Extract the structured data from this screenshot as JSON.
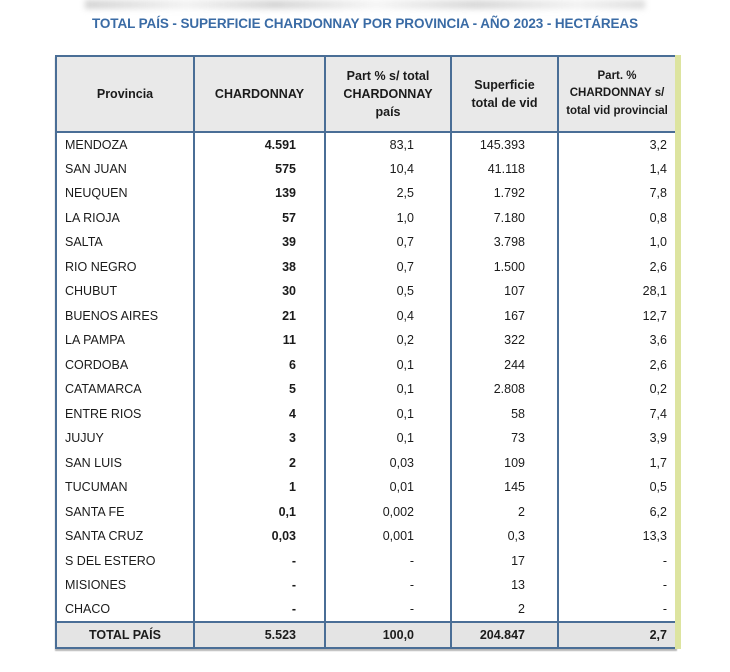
{
  "page": {
    "title": "TOTAL PAÍS - SUPERFICIE CHARDONNAY POR PROVINCIA - AÑO 2023 - HECTÁREAS"
  },
  "chart_data": {
    "type": "table",
    "title": "TOTAL PAÍS - SUPERFICIE CHARDONNAY POR PROVINCIA - AÑO 2023 - HECTÁREAS",
    "columns": [
      "Provincia",
      "CHARDONNAY",
      "Part % s/ total CHARDONNAY país",
      "Superficie total de vid",
      "Part. % CHARDONNAY s/ total vid provincial"
    ],
    "column_headers_display": [
      "Provincia",
      "CHARDONNAY",
      "Part % s/ total\nCHARDONNAY\npaís",
      "Superficie\ntotal de vid",
      "Part. %\nCHARDONNAY s/\ntotal vid provincial"
    ],
    "rows": [
      [
        "MENDOZA",
        "4.591",
        "83,1",
        "145.393",
        "3,2"
      ],
      [
        "SAN JUAN",
        "575",
        "10,4",
        "41.118",
        "1,4"
      ],
      [
        "NEUQUEN",
        "139",
        "2,5",
        "1.792",
        "7,8"
      ],
      [
        "LA RIOJA",
        "57",
        "1,0",
        "7.180",
        "0,8"
      ],
      [
        "SALTA",
        "39",
        "0,7",
        "3.798",
        "1,0"
      ],
      [
        "RIO NEGRO",
        "38",
        "0,7",
        "1.500",
        "2,6"
      ],
      [
        "CHUBUT",
        "30",
        "0,5",
        "107",
        "28,1"
      ],
      [
        "BUENOS AIRES",
        "21",
        "0,4",
        "167",
        "12,7"
      ],
      [
        "LA PAMPA",
        "11",
        "0,2",
        "322",
        "3,6"
      ],
      [
        "CORDOBA",
        "6",
        "0,1",
        "244",
        "2,6"
      ],
      [
        "CATAMARCA",
        "5",
        "0,1",
        "2.808",
        "0,2"
      ],
      [
        "ENTRE RIOS",
        "4",
        "0,1",
        "58",
        "7,4"
      ],
      [
        "JUJUY",
        "3",
        "0,1",
        "73",
        "3,9"
      ],
      [
        "SAN LUIS",
        "2",
        "0,03",
        "109",
        "1,7"
      ],
      [
        "TUCUMAN",
        "1",
        "0,01",
        "145",
        "0,5"
      ],
      [
        "SANTA FE",
        "0,1",
        "0,002",
        "2",
        "6,2"
      ],
      [
        "SANTA CRUZ",
        "0,03",
        "0,001",
        "0,3",
        "13,3"
      ],
      [
        "S DEL ESTERO",
        "-",
        "-",
        "17",
        "-"
      ],
      [
        "MISIONES",
        "-",
        "-",
        "13",
        "-"
      ],
      [
        "CHACO",
        "-",
        "-",
        "2",
        "-"
      ]
    ],
    "total_row": [
      "TOTAL PAÍS",
      "5.523",
      "100,0",
      "204.847",
      "2,7"
    ]
  },
  "colors": {
    "title_text": "#3a6ba5",
    "table_border": "#4a6e96",
    "header_bg": "#e9e9e9",
    "total_bg": "#e4e4e4",
    "right_stripe": "#dde4a0",
    "cell_text": "#1b1b1b"
  }
}
